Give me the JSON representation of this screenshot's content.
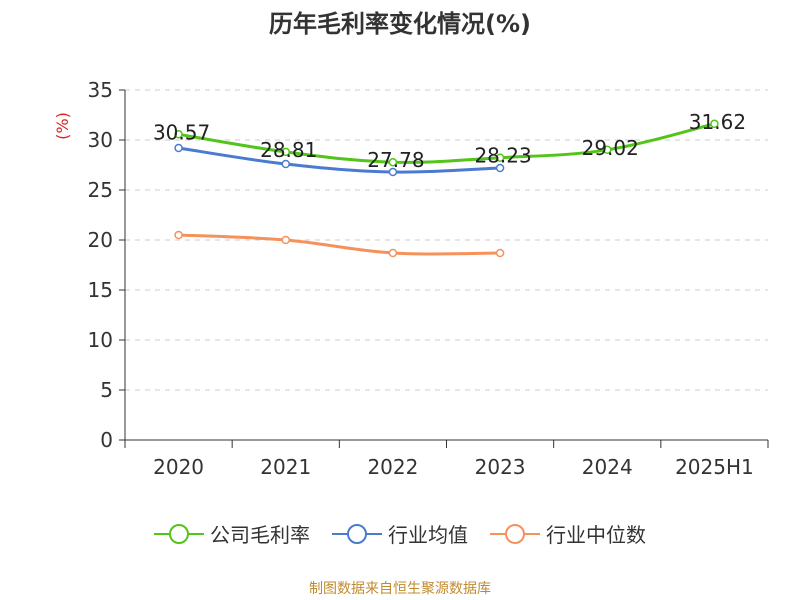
{
  "title": "历年毛利率变化情况(%)",
  "source": "制图数据来自恒生聚源数据库",
  "chart_data": {
    "type": "line",
    "title": "历年毛利率变化情况(%)",
    "ylabel": "(%)",
    "xlabel": "",
    "ylim": [
      0,
      35
    ],
    "yticks": [
      0,
      5,
      10,
      15,
      20,
      25,
      30,
      35
    ],
    "categories": [
      "2020",
      "2021",
      "2022",
      "2023",
      "2024",
      "2025H1"
    ],
    "grid": true,
    "legend_position": "bottom",
    "series": [
      {
        "name": "公司毛利率",
        "color": "#52c41a",
        "values": [
          30.57,
          28.81,
          27.78,
          28.23,
          29.02,
          31.62
        ],
        "labels": [
          "30.57",
          "28.81",
          "27.78",
          "28.23",
          "29.02",
          "31.62"
        ]
      },
      {
        "name": "行业均值",
        "color": "#4a7bd0",
        "values": [
          29.2,
          27.6,
          26.8,
          27.2,
          null,
          null
        ]
      },
      {
        "name": "行业中位数",
        "color": "#f5915a",
        "values": [
          20.5,
          20.0,
          18.7,
          18.7,
          null,
          null
        ]
      }
    ],
    "ylabel_color": "#e02020"
  }
}
